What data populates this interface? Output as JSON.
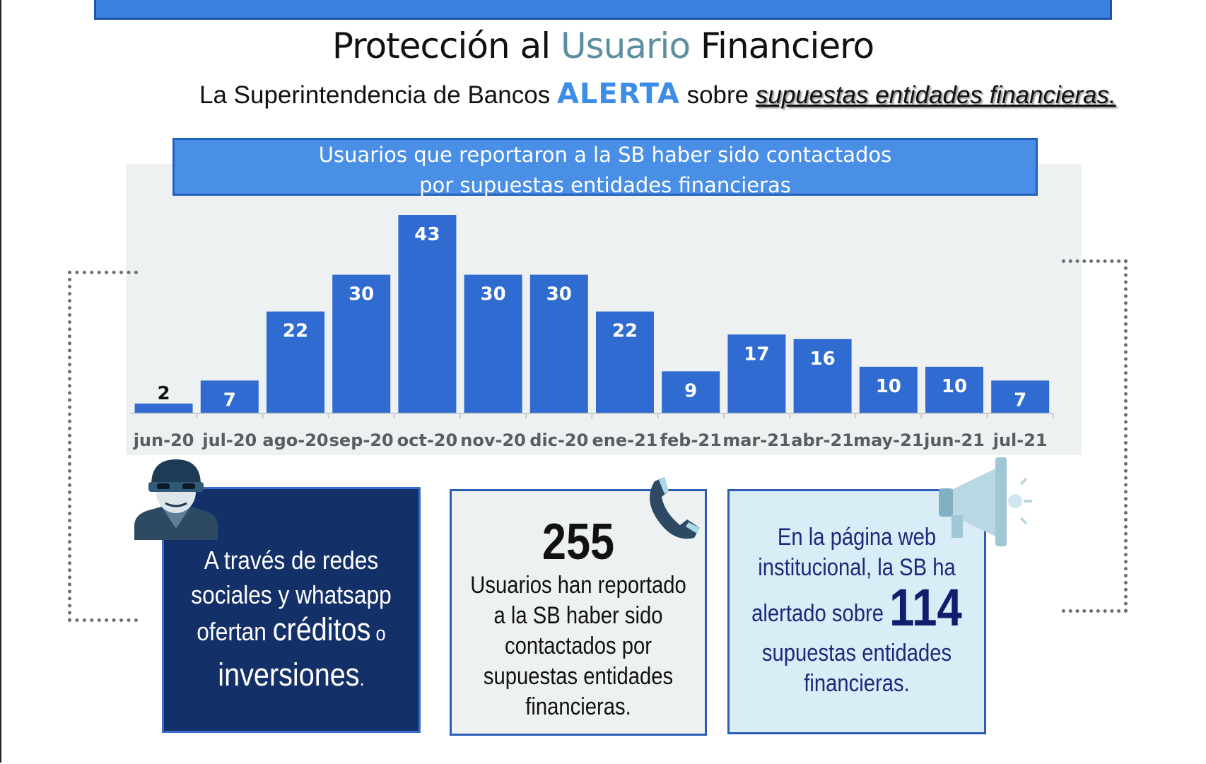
{
  "header": {
    "title_part1": "Protección al ",
    "title_accent": "Usuario",
    "title_part2": " Financiero",
    "subtitle_part1": "La Superintendencia de Bancos ",
    "subtitle_alert": "ALERTA",
    "subtitle_part2": " sobre ",
    "subtitle_italic": "supuestas entidades financieras."
  },
  "chart_header": {
    "line1": "Usuarios que reportaron a la SB haber sido contactados",
    "line2": "por supuestas entidades financieras"
  },
  "chart_data": {
    "type": "bar",
    "title": "Usuarios que reportaron a la SB haber sido contactados por supuestas entidades financieras",
    "categories": [
      "jun-20",
      "jul-20",
      "ago-20",
      "sep-20",
      "oct-20",
      "nov-20",
      "dic-20",
      "ene-21",
      "feb-21",
      "mar-21",
      "abr-21",
      "may-21",
      "jun-21",
      "jul-21"
    ],
    "values": [
      2,
      7,
      22,
      30,
      43,
      30,
      30,
      22,
      9,
      17,
      16,
      10,
      10,
      7
    ],
    "xlabel": "",
    "ylabel": "",
    "ylim": [
      0,
      43
    ],
    "grid": false,
    "data_labels": true,
    "bar_color": "#2f6bd0",
    "background_color": "#eef1f1"
  },
  "boxes": {
    "left": {
      "line1": "A través de redes",
      "line2": "sociales y whatsapp",
      "line3a": "ofertan ",
      "line3b": "créditos",
      "line3c": " o",
      "line4a": "inversiones",
      "line4b": "."
    },
    "mid": {
      "number": "255",
      "line1": "Usuarios han reportado",
      "line2": "a la SB haber sido",
      "line3": "contactados por",
      "line4": "supuestas entidades",
      "line5": "financieras."
    },
    "right": {
      "line1": "En la página web",
      "line2": "institucional, la SB ha",
      "line3a": "alertado sobre ",
      "number": "114",
      "line4": "supuestas entidades",
      "line5": "financieras."
    }
  },
  "icons": {
    "thief": "thief-icon",
    "phone": "phone-icon",
    "megaphone": "megaphone-icon"
  }
}
